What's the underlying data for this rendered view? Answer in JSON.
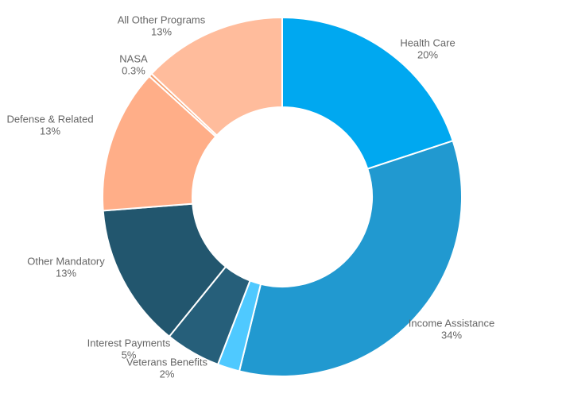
{
  "chart_data": {
    "type": "donut",
    "categories": [
      "Health Care",
      "Income Assistance",
      "Veterans Benefits",
      "Interest Payments",
      "Other Mandatory",
      "Defense & Related",
      "NASA",
      "All Other Programs"
    ],
    "values": [
      20,
      34,
      2,
      5,
      13,
      13,
      0.3,
      13
    ],
    "value_labels": [
      "20%",
      "34%",
      "2%",
      "5%",
      "13%",
      "13%",
      "0.3%",
      "13%"
    ],
    "colors": [
      "#00a8f0",
      "#2199d0",
      "#4fc9ff",
      "#265f7a",
      "#22566e",
      "#ffae88",
      "#f5a070",
      "#ffbc9c"
    ]
  }
}
